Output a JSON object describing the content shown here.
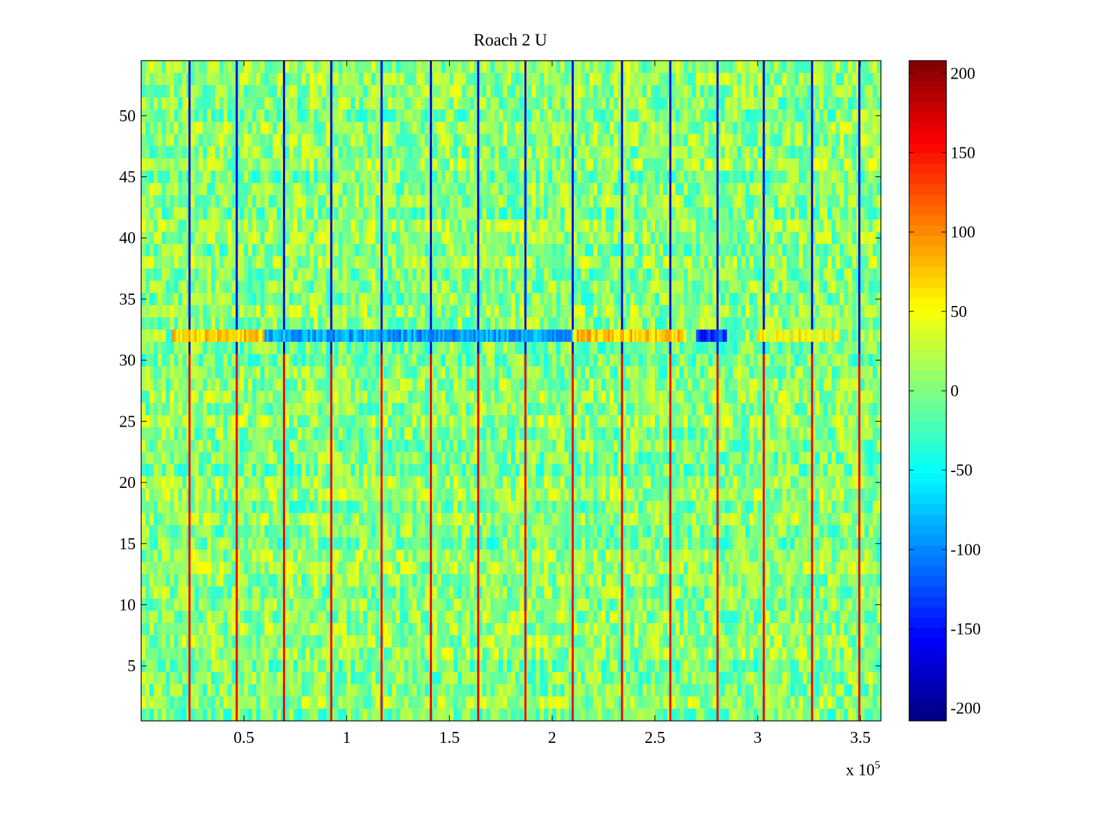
{
  "chart_data": {
    "type": "heatmap",
    "title": "Roach 2 U",
    "xlabel": "",
    "ylabel": "",
    "x_exponent_label": "x 10",
    "x_exponent_power": "5",
    "xlim": [
      0,
      360000
    ],
    "ylim": [
      0.5,
      54.5
    ],
    "x_ticks": [
      50000,
      100000,
      150000,
      200000,
      250000,
      300000,
      350000
    ],
    "x_tick_labels": [
      "0.5",
      "1",
      "1.5",
      "2",
      "2.5",
      "3",
      "3.5"
    ],
    "y_ticks": [
      5,
      10,
      15,
      20,
      25,
      30,
      35,
      40,
      45,
      50
    ],
    "y_tick_labels": [
      "5",
      "10",
      "15",
      "20",
      "25",
      "30",
      "35",
      "40",
      "45",
      "50"
    ],
    "rows": 54,
    "colormap": "jet",
    "clim": [
      -208,
      208
    ],
    "colorbar_ticks": [
      -200,
      -150,
      -100,
      -50,
      0,
      50,
      100,
      150,
      200
    ],
    "colorbar_tick_labels": [
      "-200",
      "-150",
      "-100",
      "-50",
      "0",
      "50",
      "100",
      "150",
      "200"
    ],
    "colorbar_placement": "right",
    "spike_columns_x": [
      23500,
      46500,
      69500,
      92500,
      117000,
      141000,
      164000,
      187000,
      210000,
      234000,
      257500,
      280500,
      303000,
      326500,
      349500
    ],
    "spike_value_low_rows": 160,
    "spike_value_high_rows": -170,
    "band_row": 32,
    "band_segments": [
      {
        "x0": 15000,
        "x1": 60000,
        "value": 70
      },
      {
        "x0": 60000,
        "x1": 210000,
        "value": -90
      },
      {
        "x0": 210000,
        "x1": 265000,
        "value": 75
      },
      {
        "x0": 270000,
        "x1": 285000,
        "value": -130
      },
      {
        "x0": 300000,
        "x1": 340000,
        "value": 50
      }
    ],
    "typical_value_range": [
      -40,
      45
    ]
  }
}
